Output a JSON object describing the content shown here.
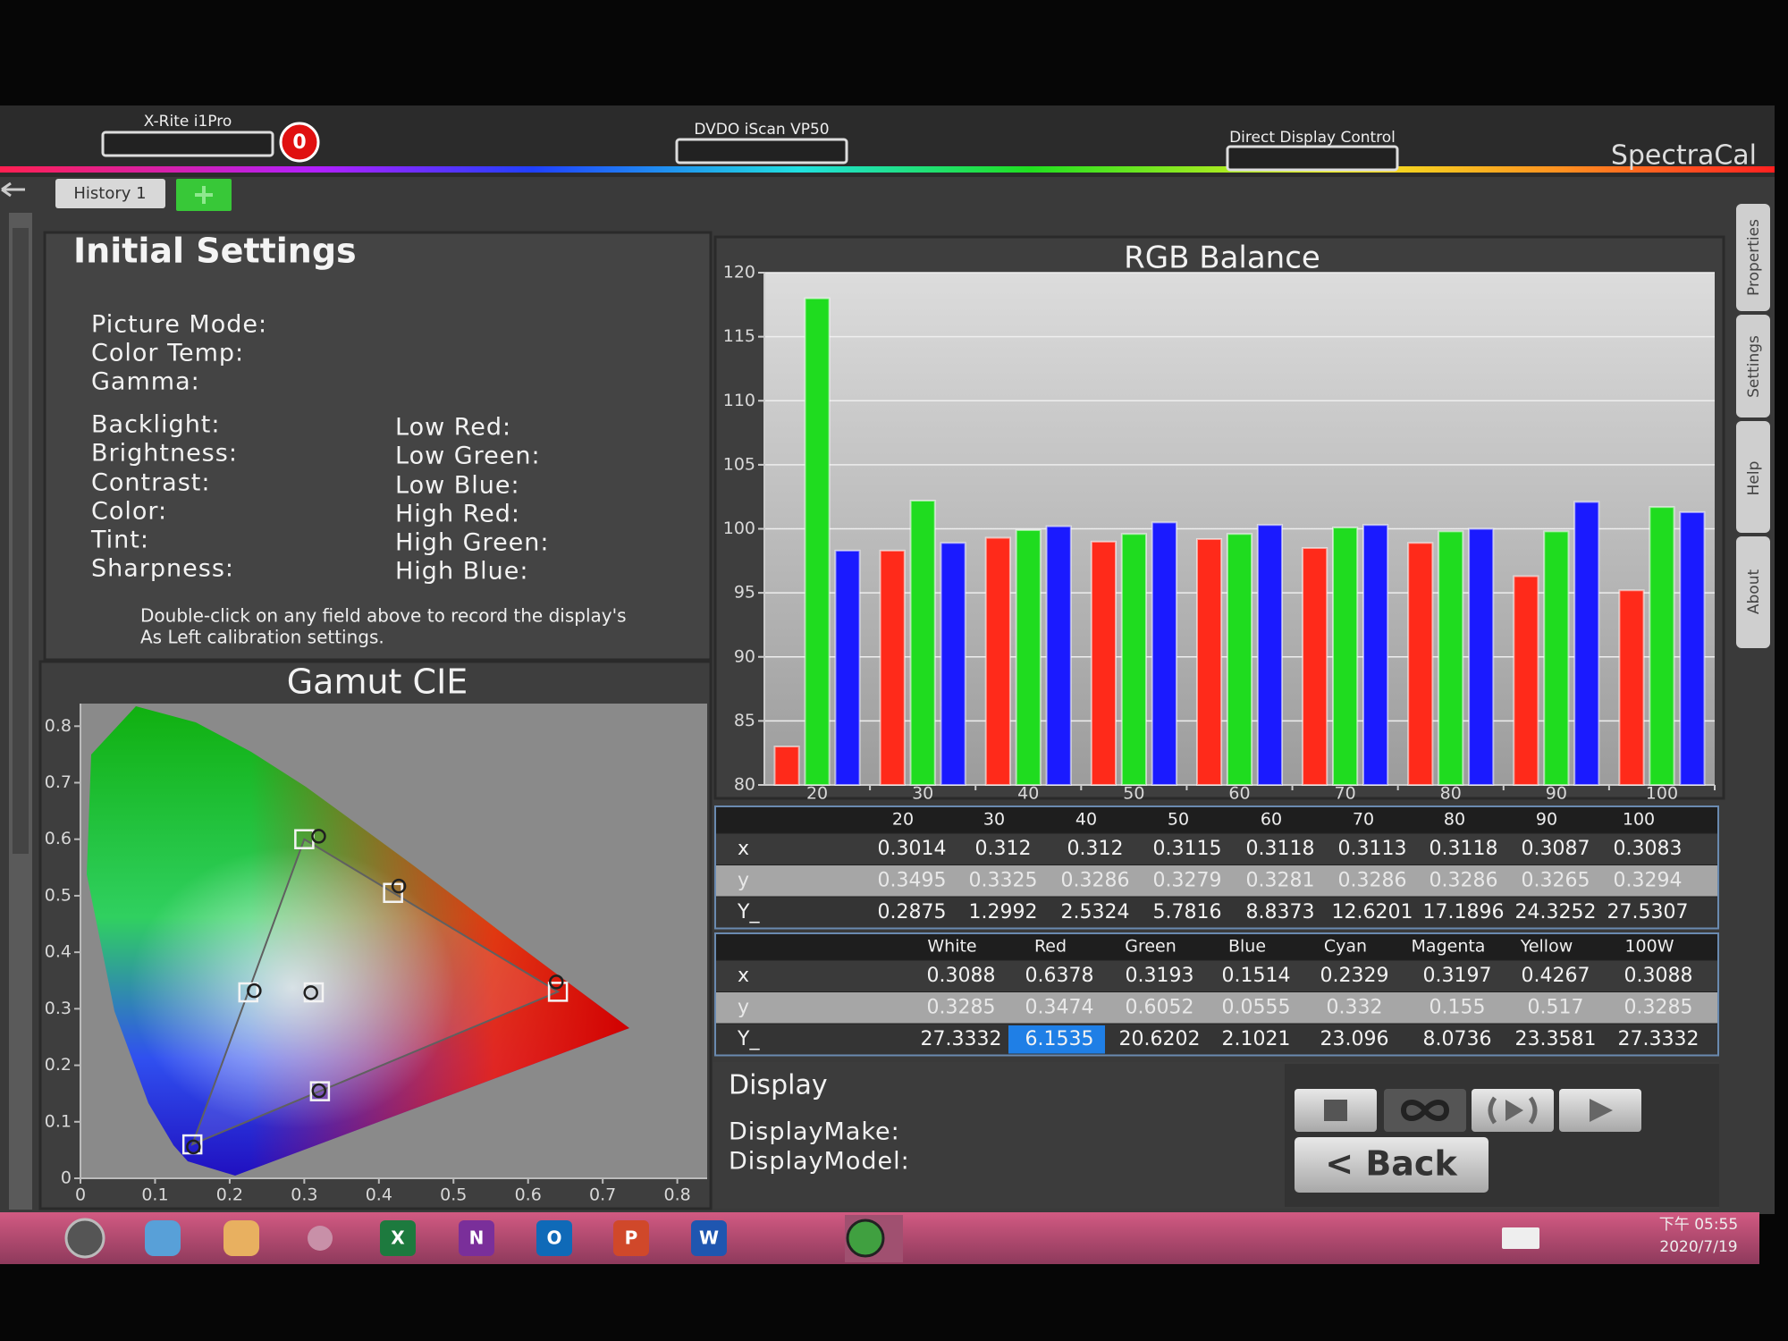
{
  "header": {
    "devices": [
      "X-Rite i1Pro",
      "DVDO iScan VP50",
      "Direct Display Control"
    ],
    "meter_count": 0,
    "brand": "SpectraCal",
    "history_tab": "History 1"
  },
  "side_tabs": [
    "Properties",
    "Settings",
    "Help",
    "About"
  ],
  "settings": {
    "title": "Initial Settings",
    "top": [
      "Picture Mode:",
      "Color Temp:",
      "Gamma:"
    ],
    "left": [
      "Backlight:",
      "Brightness:",
      "Contrast:",
      "Color:",
      "Tint:",
      "Sharpness:"
    ],
    "right": [
      "Low Red:",
      "Low Green:",
      "Low Blue:",
      "High Red:",
      "High Green:",
      "High Blue:"
    ],
    "note": [
      "Double-click on any field above to record the display's",
      "As Left calibration settings."
    ]
  },
  "chart_data": [
    {
      "type": "bar",
      "title": "RGB Balance",
      "categories": [
        "20",
        "30",
        "40",
        "50",
        "60",
        "70",
        "80",
        "90",
        "100"
      ],
      "series": [
        {
          "color": "#ff2a1a",
          "values": [
            83,
            98.3,
            99.3,
            99,
            99.2,
            98.5,
            98.9,
            96.3,
            95.2
          ]
        },
        {
          "color": "#1fdc1f",
          "values": [
            118,
            102.2,
            99.9,
            99.6,
            99.6,
            100.1,
            99.8,
            99.8,
            101.7
          ]
        },
        {
          "color": "#1a1aff",
          "values": [
            98.3,
            98.9,
            100.2,
            100.5,
            100.3,
            100.3,
            100,
            102.1,
            101.3
          ]
        }
      ],
      "ylim": [
        80,
        120
      ],
      "yticks": [
        80,
        85,
        90,
        95,
        100,
        105,
        110,
        115,
        120
      ],
      "grid": true
    },
    {
      "type": "scatter",
      "title": "Gamut CIE",
      "xlim": [
        0,
        0.84
      ],
      "ylim": [
        0,
        0.84
      ],
      "xticks": [
        0,
        0.1,
        0.2,
        0.3,
        0.4,
        0.5,
        0.6,
        0.7,
        0.8
      ],
      "yticks": [
        0,
        0.1,
        0.2,
        0.3,
        0.4,
        0.5,
        0.6,
        0.7,
        0.8
      ],
      "series": [
        {
          "marker": "square",
          "color": "#f4f4f4",
          "x": [
            0.64,
            0.3,
            0.15,
            0.225,
            0.321,
            0.419,
            0.3127
          ],
          "y": [
            0.33,
            0.6,
            0.06,
            0.329,
            0.154,
            0.505,
            0.329
          ]
        },
        {
          "marker": "circle",
          "color": "#202020",
          "x": [
            0.6378,
            0.3193,
            0.1514,
            0.2329,
            0.3197,
            0.4267,
            0.3088
          ],
          "y": [
            0.3474,
            0.6052,
            0.0555,
            0.332,
            0.155,
            0.517,
            0.3285
          ]
        }
      ]
    }
  ],
  "table_levels": {
    "columns": [
      20,
      30,
      40,
      50,
      60,
      70,
      80,
      90,
      100
    ],
    "rows": [
      {
        "label": "x",
        "values": [
          0.3014,
          0.312,
          0.312,
          0.3115,
          0.3118,
          0.3113,
          0.3118,
          0.3087,
          0.3083
        ]
      },
      {
        "label": "y",
        "values": [
          0.3495,
          0.3325,
          0.3286,
          0.3279,
          0.3281,
          0.3286,
          0.3286,
          0.3265,
          0.3294
        ]
      },
      {
        "label": "Y_",
        "values": [
          0.2875,
          1.2992,
          2.5324,
          5.7816,
          8.8373,
          12.6201,
          17.1896,
          24.3252,
          27.5307
        ]
      }
    ]
  },
  "table_colors": {
    "columns": [
      "White",
      "Red",
      "Green",
      "Blue",
      "Cyan",
      "Magenta",
      "Yellow",
      "100W"
    ],
    "rows": [
      {
        "label": "x",
        "values": [
          0.3088,
          0.6378,
          0.3193,
          0.1514,
          0.2329,
          0.3197,
          0.4267,
          0.3088
        ]
      },
      {
        "label": "y",
        "values": [
          0.3285,
          0.3474,
          0.6052,
          0.0555,
          0.332,
          0.155,
          0.517,
          0.3285
        ]
      },
      {
        "label": "Y_",
        "values": [
          27.3332,
          6.1535,
          20.6202,
          2.1021,
          23.096,
          8.0736,
          23.3581,
          27.3332
        ]
      }
    ]
  },
  "display": {
    "title": "Display",
    "fields": [
      "DisplayMake:",
      "DisplayModel:"
    ],
    "back_button": "< Back"
  },
  "taskbar": {
    "icon_letters": [
      "X",
      "N",
      "O",
      "P",
      "W"
    ],
    "time": "下午 05:55",
    "date": "2020/7/19"
  }
}
